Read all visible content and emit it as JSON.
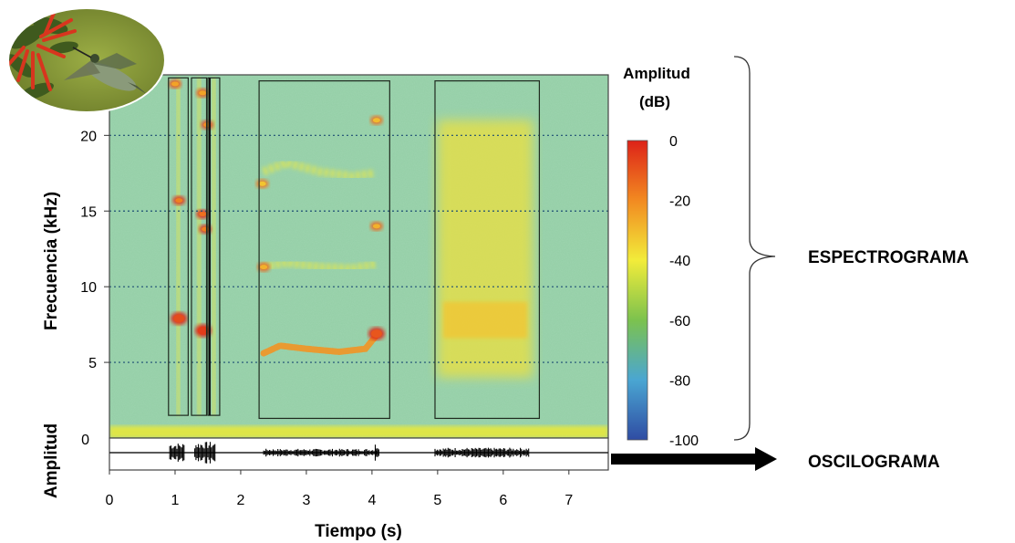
{
  "chart_data": {
    "type": "heatmap",
    "x_axis": {
      "label": "Tiempo (s)",
      "range": [
        0,
        7.6
      ],
      "ticks": [
        0,
        1,
        2,
        3,
        4,
        5,
        6,
        7
      ]
    },
    "spectrogram": {
      "y_label": "Frecuencia (kHz)",
      "y_range": [
        0,
        24
      ],
      "y_ticks": [
        0,
        5,
        10,
        15,
        20
      ],
      "gridlines_at": [
        5,
        10,
        15,
        20
      ],
      "grid_style": "dotted horizontal",
      "background_level_db": -50,
      "boxes": [
        {
          "t_start": 0.9,
          "t_end": 1.2,
          "f_start": 1.5,
          "f_end": 23.8
        },
        {
          "t_start": 1.25,
          "t_end": 1.48,
          "f_start": 1.5,
          "f_end": 23.8
        },
        {
          "t_start": 1.5,
          "t_end": 1.68,
          "f_start": 1.5,
          "f_end": 23.8
        },
        {
          "t_start": 2.28,
          "t_end": 4.27,
          "f_start": 1.3,
          "f_end": 23.6
        },
        {
          "t_start": 4.96,
          "t_end": 6.55,
          "f_start": 1.3,
          "f_end": 23.6
        }
      ],
      "hotspots": [
        {
          "t": 1.06,
          "f": 7.9,
          "db": -8
        },
        {
          "t": 1.06,
          "f": 15.7,
          "db": -18
        },
        {
          "t": 1.43,
          "f": 7.1,
          "db": -5
        },
        {
          "t": 1.42,
          "f": 14.8,
          "db": -15
        },
        {
          "t": 1.46,
          "f": 13.8,
          "db": -18
        },
        {
          "t": 1.49,
          "f": 20.7,
          "db": -22
        },
        {
          "t": 1.42,
          "f": 22.8,
          "db": -25
        },
        {
          "t": 1.0,
          "f": 23.4,
          "db": -25
        },
        {
          "t": 4.07,
          "f": 6.9,
          "db": -10
        },
        {
          "t": 4.07,
          "f": 14.0,
          "db": -28
        },
        {
          "t": 4.07,
          "f": 21.0,
          "db": -30
        },
        {
          "t": 2.35,
          "f": 11.3,
          "db": -28
        },
        {
          "t": 2.33,
          "f": 16.8,
          "db": -32
        }
      ],
      "whistle_trace": {
        "db": -22,
        "points": [
          [
            2.35,
            5.6
          ],
          [
            2.6,
            6.1
          ],
          [
            3.0,
            5.9
          ],
          [
            3.5,
            5.7
          ],
          [
            3.9,
            5.9
          ],
          [
            4.07,
            6.8
          ]
        ]
      },
      "harmonic_traces": [
        {
          "db": -40,
          "points": [
            [
              2.35,
              11.3
            ],
            [
              2.7,
              11.6
            ],
            [
              3.2,
              11.3
            ],
            [
              3.7,
              11.2
            ],
            [
              4.05,
              11.5
            ]
          ]
        },
        {
          "db": -40,
          "points": [
            [
              2.35,
              17.6
            ],
            [
              2.7,
              18.2
            ],
            [
              3.2,
              17.6
            ],
            [
              3.7,
              17.3
            ],
            [
              4.05,
              17.5
            ]
          ]
        }
      ],
      "noise_band": {
        "t_start": 5.0,
        "t_end": 6.45,
        "f_start": 4.0,
        "f_end": 21.0,
        "db": -38,
        "peak_f": 7.8,
        "peak_db": -32
      }
    },
    "oscillogram": {
      "y_label": "Amplitud",
      "y_tick": [
        0
      ],
      "envelope": [
        {
          "t_start": 0.92,
          "t_end": 1.15,
          "amplitude": 0.9
        },
        {
          "t_start": 1.3,
          "t_end": 1.62,
          "amplitude": 1.0
        },
        {
          "t_start": 2.35,
          "t_end": 4.1,
          "amplitude": 0.35
        },
        {
          "t_start": 4.05,
          "t_end": 4.12,
          "amplitude": 0.85
        },
        {
          "t_start": 4.96,
          "t_end": 6.4,
          "amplitude": 0.45
        }
      ]
    },
    "colorbar": {
      "title": "Amplitud (dB)",
      "title_lines": [
        "Amplitud",
        "(dB)"
      ],
      "range": [
        -100,
        0
      ],
      "ticks": [
        0,
        -20,
        -40,
        -60,
        -80,
        -100
      ],
      "colors": [
        "#dd2218",
        "#f28a21",
        "#f2ec3a",
        "#7cc24e",
        "#4aa6d2",
        "#2f4ca3"
      ]
    },
    "annotations": {
      "spectrogram_label": "ESPECTROGRAMA",
      "oscillogram_label": "OSCILOGRAMA"
    },
    "inset_image": {
      "subject": "hummingbird-feeding-on-red-flowers"
    }
  }
}
